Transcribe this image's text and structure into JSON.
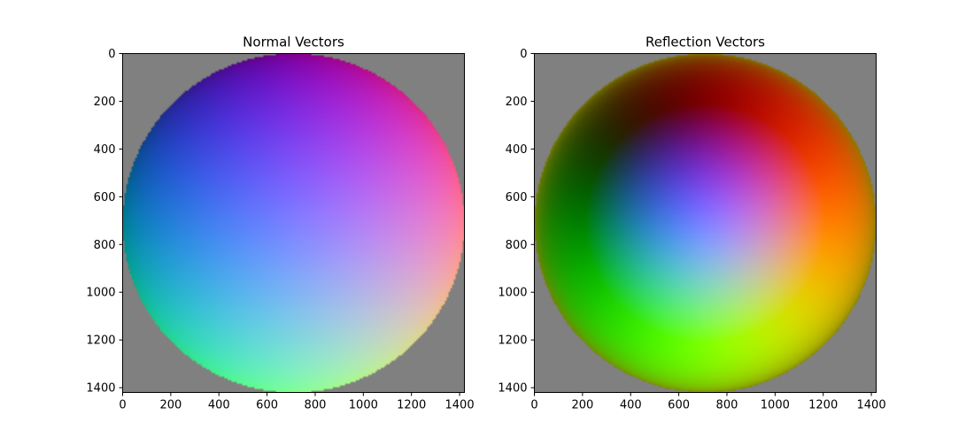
{
  "chart_data": [
    {
      "type": "heatmap",
      "title": "Normal Vectors",
      "xlabel": "",
      "ylabel": "",
      "xlim": [
        0,
        1420
      ],
      "ylim": [
        1420,
        0
      ],
      "x_ticks": [
        0,
        200,
        400,
        600,
        800,
        1000,
        1200,
        1400
      ],
      "y_ticks": [
        0,
        200,
        400,
        600,
        800,
        1000,
        1200,
        1400
      ],
      "image": {
        "kind": "sphere-normal-map",
        "center": [
          710,
          710
        ],
        "radius": 710,
        "background": "#808080"
      }
    },
    {
      "type": "heatmap",
      "title": "Reflection Vectors",
      "xlabel": "",
      "ylabel": "",
      "xlim": [
        0,
        1420
      ],
      "ylim": [
        1420,
        0
      ],
      "x_ticks": [
        0,
        200,
        400,
        600,
        800,
        1000,
        1200,
        1400
      ],
      "y_ticks": [
        0,
        200,
        400,
        600,
        800,
        1000,
        1200,
        1400
      ],
      "image": {
        "kind": "sphere-reflection-map",
        "center": [
          710,
          710
        ],
        "radius": 710,
        "background": "#808080"
      }
    }
  ]
}
